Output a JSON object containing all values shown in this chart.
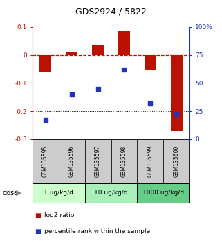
{
  "title": "GDS2924 / 5822",
  "samples": [
    "GSM135595",
    "GSM135596",
    "GSM135597",
    "GSM135598",
    "GSM135599",
    "GSM135600"
  ],
  "log2_ratio": [
    -0.06,
    0.01,
    0.035,
    0.085,
    -0.055,
    -0.27
  ],
  "percentile_rank": [
    17,
    40,
    45,
    62,
    32,
    22
  ],
  "dose_groups": [
    {
      "label": "1 ug/kg/d",
      "samples": [
        0,
        1
      ],
      "color": "#ccffcc"
    },
    {
      "label": "10 ug/kg/d",
      "samples": [
        2,
        3
      ],
      "color": "#aaeebb"
    },
    {
      "label": "1000 ug/kg/d",
      "samples": [
        4,
        5
      ],
      "color": "#66cc88"
    }
  ],
  "ylim_left": [
    -0.3,
    0.1
  ],
  "ylim_right": [
    0,
    100
  ],
  "bar_color": "#bb1100",
  "dot_color": "#2233bb",
  "sample_box_color": "#cccccc",
  "dotted_lines": [
    -0.1,
    -0.2
  ],
  "bar_width": 0.45
}
